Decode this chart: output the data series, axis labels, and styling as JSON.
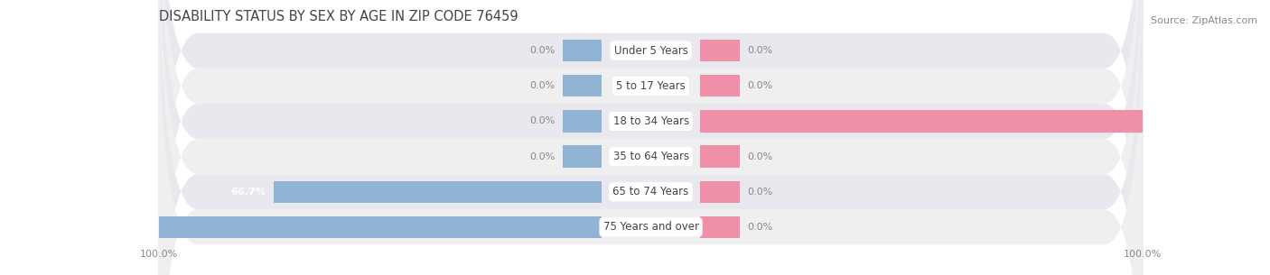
{
  "title": "DISABILITY STATUS BY SEX BY AGE IN ZIP CODE 76459",
  "source": "Source: ZipAtlas.com",
  "categories": [
    "Under 5 Years",
    "5 to 17 Years",
    "18 to 34 Years",
    "35 to 64 Years",
    "65 to 74 Years",
    "75 Years and over"
  ],
  "male_values": [
    0.0,
    0.0,
    0.0,
    0.0,
    66.7,
    100.0
  ],
  "female_values": [
    0.0,
    0.0,
    100.0,
    0.0,
    0.0,
    0.0
  ],
  "male_color": "#92b4d4",
  "female_color": "#f090a8",
  "row_colors": [
    "#e8e8ee",
    "#efefef"
  ],
  "label_color": "#444444",
  "value_color_dark": "#888888",
  "value_color_light": "#ffffff",
  "title_color": "#444444",
  "source_color": "#888888",
  "max_val": 100.0,
  "bar_height": 0.62,
  "stub_size": 8.0,
  "figsize": [
    14.06,
    3.05
  ],
  "dpi": 100
}
